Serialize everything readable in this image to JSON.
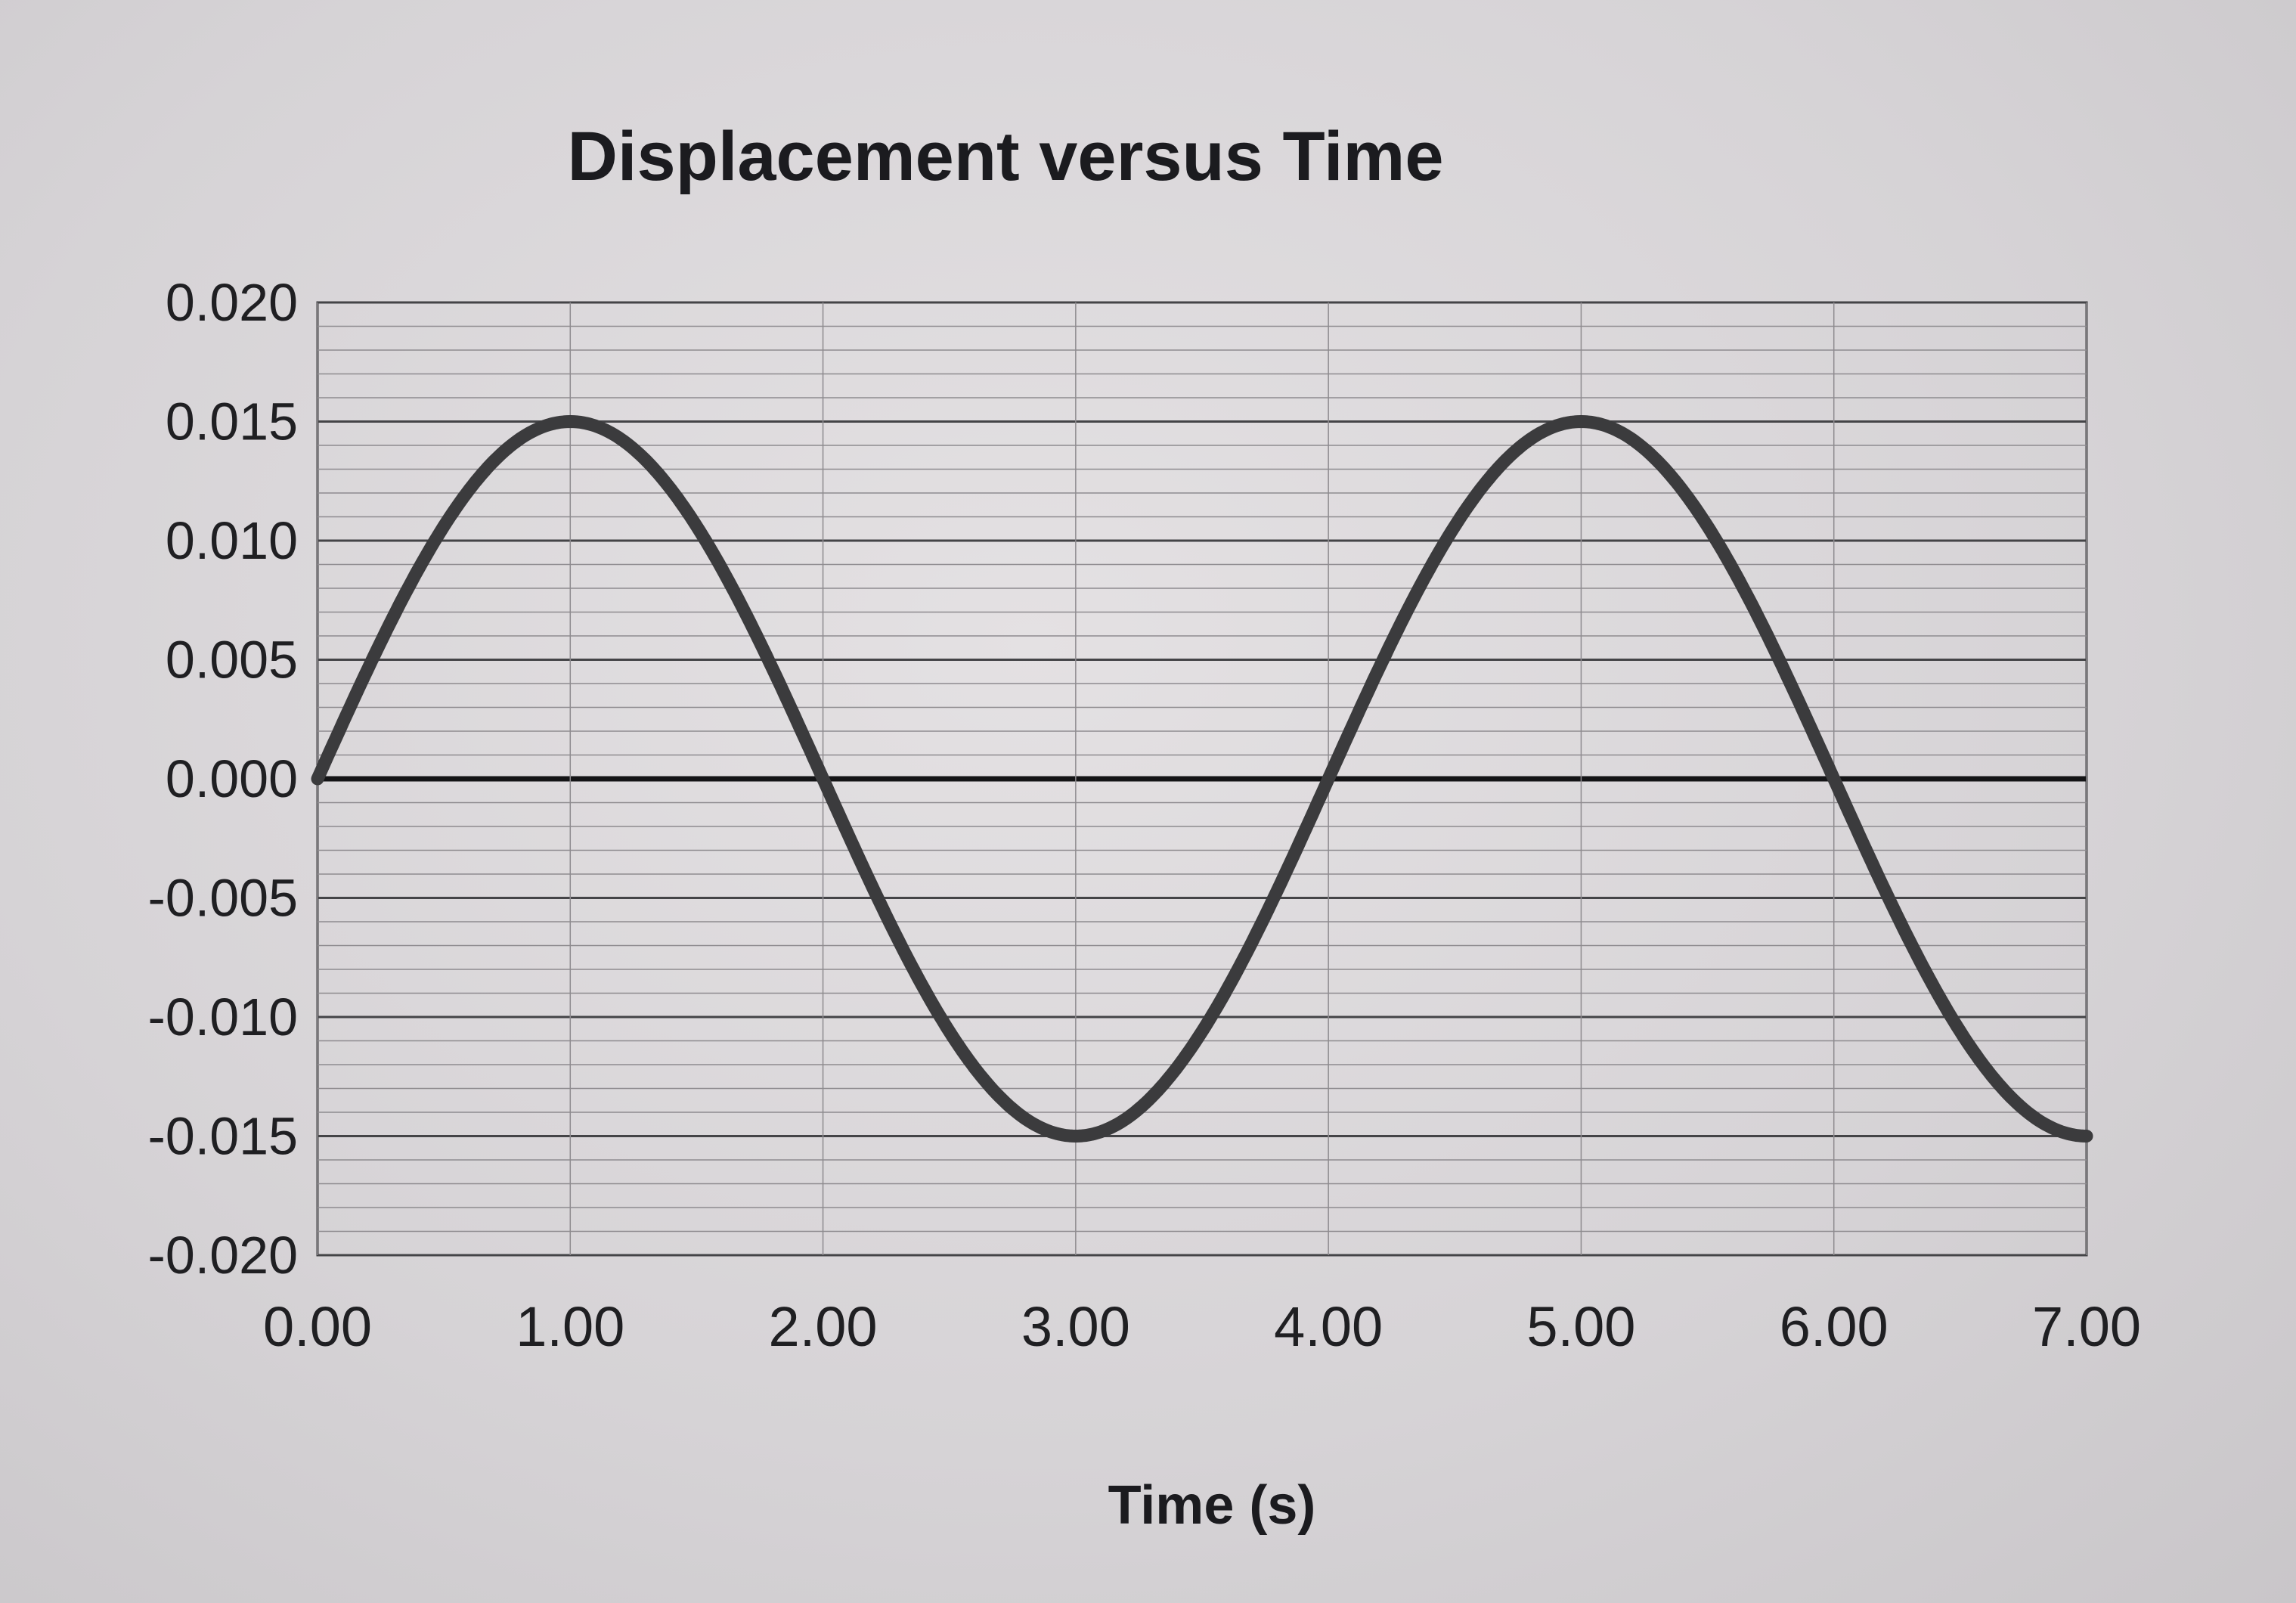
{
  "chart_data": {
    "type": "line",
    "title": "Displacement versus Time",
    "xlabel": "Time (s)",
    "ylabel": "",
    "xlim": [
      0,
      7
    ],
    "ylim": [
      -0.02,
      0.02
    ],
    "x_ticks": [
      "0.00",
      "1.00",
      "2.00",
      "3.00",
      "4.00",
      "5.00",
      "6.00",
      "7.00"
    ],
    "y_ticks": [
      "0.020",
      "0.015",
      "0.010",
      "0.005",
      "0.000",
      "-0.005",
      "-0.010",
      "-0.015",
      "-0.020"
    ],
    "grid": true,
    "series": [
      {
        "x": [
          0,
          0.25,
          0.5,
          0.75,
          1.0,
          1.25,
          1.5,
          1.75,
          2.0,
          2.25,
          2.5,
          2.75,
          3.0,
          3.25,
          3.5,
          3.75,
          4.0,
          4.25,
          4.5,
          4.75,
          5.0,
          5.25,
          5.5,
          5.75,
          6.0,
          6.25,
          6.5,
          6.75,
          7.0
        ],
        "y": [
          0,
          0.0057,
          0.0106,
          0.0139,
          0.015,
          0.0139,
          0.0106,
          0.0057,
          0,
          -0.0057,
          -0.0106,
          -0.0139,
          -0.015,
          -0.0139,
          -0.0106,
          -0.0057,
          0,
          0.0057,
          0.0106,
          0.0139,
          0.015,
          0.0139,
          0.0106,
          0.0057,
          0,
          -0.0057,
          -0.0106,
          -0.0139,
          -0.015
        ],
        "color": "#3b3b3d"
      }
    ]
  }
}
